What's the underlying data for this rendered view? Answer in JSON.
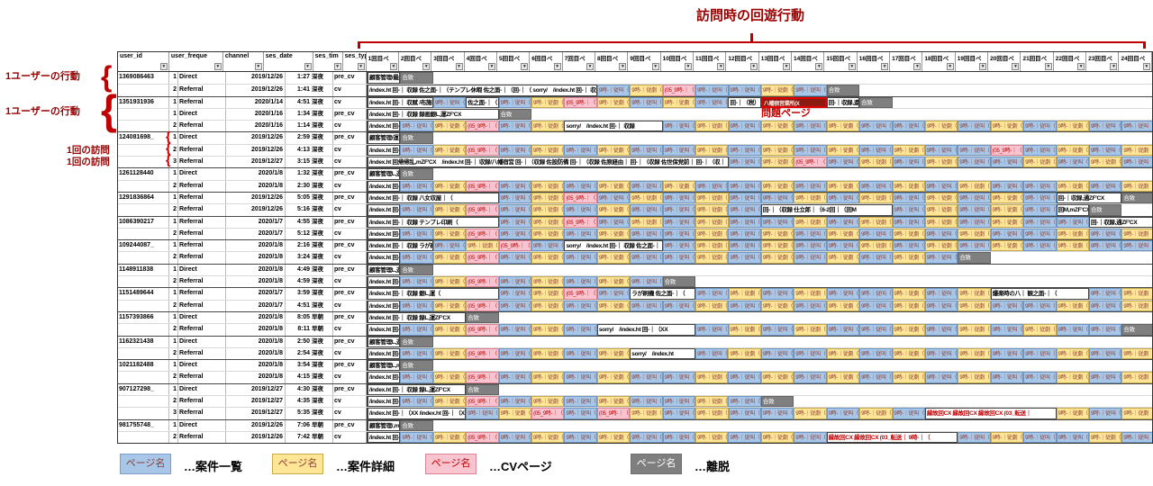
{
  "annotations": {
    "top_title": "訪問時の回遊行動",
    "user_behavior_label_1": "1ユーザーの行動",
    "user_behavior_label_2": "1ユーザーの行動",
    "single_visit_label_1": "1回の訪問",
    "single_visit_label_2": "1回の訪問",
    "problem_page_label": "問題ページ",
    "accent_color": "#990000",
    "brace_color": "#c00000"
  },
  "table": {
    "columns": [
      "user_id",
      "user_freque",
      "channel",
      "ses_date",
      "ses_tim",
      "ses_type"
    ],
    "page_columns": [
      "1回目ペ",
      "2回目ペ",
      "3回目ペ",
      "4回目ペ",
      "5回目ペ",
      "6回目ペ",
      "7回目ペ",
      "8回目ペ",
      "9回目ペ",
      "10回目ペ",
      "11回目ペ",
      "12回目ペ",
      "13回目ペ",
      "14回目ペ",
      "15回目ペ",
      "16回目ペ",
      "17回目ペ",
      "18回目ペ",
      "19回目ペ",
      "20回目ペ",
      "21回目ペ",
      "22回目ペ",
      "23回目ペ",
      "24回目ペ"
    ],
    "cell_text": {
      "B": "9時-｜従叫（",
      "Y": "9時-｜従劇（",
      "P": "(05_9時-｜（",
      "G": "合致"
    },
    "red_cell_text": "八幡宿営業所(X",
    "rows": [
      {
        "user_id": "1369086463",
        "freq": "1",
        "channel": "Direct",
        "date": "2019/12/26",
        "time": "1:27",
        "tag": "深夜",
        "type": "pre_cv",
        "gs": true,
        "segments": [
          {
            "t": "lead",
            "span": 1,
            "text": "顧客管理/最終電話,遠ZF'CX"
          },
          {
            "t": "run",
            "p": "G"
          }
        ]
      },
      {
        "user_id": "",
        "freq": "2",
        "channel": "Referral",
        "date": "2019/12/26",
        "time": "1:41",
        "tag": "深夜",
        "type": "cv",
        "segments": [
          {
            "t": "lead",
            "span": 7,
            "text": "/index.ht 回-｜ 収録 佐之面-｜（テンプレ休暇 佐之面-｜（回-｜（ sorry/　/index.ht 回-｜ 収録 附予約金雇 佐之面-｜（回-｜回M"
          },
          {
            "t": "run",
            "p": "BYPBBYBG"
          }
        ]
      },
      {
        "user_id": "1351931936",
        "freq": "1",
        "channel": "Referral",
        "date": "2020/1/14",
        "time": "4:51",
        "tag": "深夜",
        "type": "cv",
        "gs": true,
        "segments": [
          {
            "t": "lead",
            "span": 2,
            "text": "/index.ht 回-｜ 収賦 /布施収蔵"
          },
          {
            "t": "run",
            "p": "B"
          },
          {
            "t": "lead",
            "span": 1,
            "text": "佐之面-｜（"
          },
          {
            "t": "run",
            "p": "BYPYBYB"
          },
          {
            "t": "lead",
            "span": 1,
            "text": "回-｜（税）"
          },
          {
            "t": "red",
            "span": 2
          },
          {
            "t": "lead",
            "span": 1,
            "text": "回-｜収録,遠"
          },
          {
            "t": "run",
            "p": "G"
          }
        ]
      },
      {
        "user_id": "",
        "freq": "1",
        "channel": "Direct",
        "date": "2020/1/16",
        "time": "1:34",
        "tag": "深夜",
        "type": "pre_cv",
        "segments": [
          {
            "t": "lead",
            "span": 4,
            "text": "/index.ht 回-｜ 収録 録画銀L,運ZF'CX"
          },
          {
            "t": "run",
            "p": "G"
          }
        ]
      },
      {
        "user_id": "",
        "freq": "2",
        "channel": "Referral",
        "date": "2020/1/16",
        "time": "1:14",
        "tag": "深夜",
        "type": "cv",
        "segments": [
          {
            "t": "lead",
            "span": 1,
            "text": "/index.ht 回-｜収（"
          },
          {
            "t": "run",
            "p": "BYPBY"
          },
          {
            "t": "lead",
            "span": 3,
            "text": "sorry/　/index.ht 回-｜ 収録"
          },
          {
            "t": "run",
            "p": "BYBYBYBBYBYBYBB"
          }
        ]
      },
      {
        "user_id": "124081698_",
        "freq": "1",
        "channel": "Direct",
        "date": "2019/12/26",
        "time": "2:59",
        "tag": "深夜",
        "type": "pre_cv",
        "gs": true,
        "segments": [
          {
            "t": "lead",
            "span": 1,
            "text": "顧客管理/運営電話,遠ZF'CX"
          },
          {
            "t": "run",
            "p": "G"
          }
        ]
      },
      {
        "user_id": "",
        "freq": "2",
        "channel": "Referral",
        "date": "2019/12/26",
        "time": "4:13",
        "tag": "深夜",
        "type": "cv",
        "segments": [
          {
            "t": "lead",
            "span": 1,
            "text": "/index.ht 回-｜収（"
          },
          {
            "t": "run",
            "p": "BYPBYBYBBYBYBYBYBBPBYBY"
          }
        ]
      },
      {
        "user_id": "",
        "freq": "3",
        "channel": "Referral",
        "date": "2019/12/27",
        "time": "3:15",
        "tag": "深夜",
        "type": "cv",
        "segments": [
          {
            "t": "lead",
            "span": 11,
            "text": "/index.ht 回帰帰乱,mZF'CX　/index.ht 回-｜ 収録/八幡宿営 回-｜（収録 佐設防備 回-｜（収録 佐原経由｜ 回-｜（収録 佐世保党前｜ 回-｜（収｜"
          },
          {
            "t": "run",
            "p": "BYPBYBYBBYBYB"
          }
        ]
      },
      {
        "user_id": "1261128440",
        "freq": "1",
        "channel": "Direct",
        "date": "2020/1/8",
        "time": "1:32",
        "tag": "深夜",
        "type": "pre_cv",
        "gs": true,
        "segments": [
          {
            "t": "lead",
            "span": 1,
            "text": "顧客管理L,運ZF'CX"
          },
          {
            "t": "run",
            "p": "G"
          }
        ]
      },
      {
        "user_id": "",
        "freq": "2",
        "channel": "Referral",
        "date": "2020/1/8",
        "time": "2:30",
        "tag": "深夜",
        "type": "cv",
        "segments": [
          {
            "t": "lead",
            "span": 1,
            "text": "/index.ht 回-｜収（"
          },
          {
            "t": "run",
            "p": "BYPBYBYBYBBYBYBYBYBBYBY"
          }
        ]
      },
      {
        "user_id": "1291836864",
        "freq": "1",
        "channel": "Referral",
        "date": "2019/12/26",
        "time": "5:05",
        "tag": "深夜",
        "type": "pre_cv",
        "gs": true,
        "segments": [
          {
            "t": "lead",
            "span": 4,
            "text": "/index.ht 回-｜ 収録 八女収屋｜（"
          },
          {
            "t": "run",
            "p": "BYPBYBYBBYBYBYBYB"
          },
          {
            "t": "lead",
            "span": 2,
            "text": "回-｜収録,通ZF'CX"
          },
          {
            "t": "run",
            "p": "G"
          }
        ]
      },
      {
        "user_id": "",
        "freq": "2",
        "channel": "Referral",
        "date": "2019/12/26",
        "time": "5:16",
        "tag": "深夜",
        "type": "cv",
        "segments": [
          {
            "t": "lead",
            "span": 1,
            "text": "/index.ht 回-｜収（"
          },
          {
            "t": "run",
            "p": "BYPBYBYBBYB"
          },
          {
            "t": "lead",
            "span": 4,
            "text": "回-｜（収録 仕立郎｜（6-2回｜（回M"
          },
          {
            "t": "run",
            "p": "BYBYB"
          },
          {
            "t": "lead",
            "span": 1,
            "text": "回M,mZF'CX"
          },
          {
            "t": "run",
            "p": "G"
          }
        ]
      },
      {
        "user_id": "1086390217",
        "freq": "1",
        "channel": "Referral",
        "date": "2020/1/7",
        "time": "4:55",
        "tag": "深夜",
        "type": "pre_cv",
        "gs": true,
        "segments": [
          {
            "t": "lead",
            "span": 4,
            "text": "/index.ht 回-｜ 収録 テンプレ印刷（"
          },
          {
            "t": "run",
            "p": "BYPBYBYBBYBYBYBYBB"
          },
          {
            "t": "lead",
            "span": 2,
            "text": "回-｜収録,通ZF'CX"
          }
        ]
      },
      {
        "user_id": "",
        "freq": "2",
        "channel": "Referral",
        "date": "2020/1/7",
        "time": "5:12",
        "tag": "深夜",
        "type": "cv",
        "segments": [
          {
            "t": "lead",
            "span": 1,
            "text": "/index.ht 回-｜収（"
          },
          {
            "t": "run",
            "p": "BYPBYBYBBYBYBYBYBYBBYBY"
          }
        ]
      },
      {
        "user_id": "109244087_",
        "freq": "1",
        "channel": "Referral",
        "date": "2020/1/8",
        "time": "2:16",
        "tag": "深夜",
        "type": "pre_cv",
        "gs": true,
        "segments": [
          {
            "t": "lead",
            "span": 2,
            "text": "/index.ht 回-｜ 収録 ラが刷機"
          },
          {
            "t": "run",
            "p": "BYPB"
          },
          {
            "t": "lead",
            "span": 3,
            "text": "sorry/　/index.ht 回-｜ 収録 佐之面-｜（"
          },
          {
            "t": "run",
            "p": "BYBYBBYBYBYBYBB"
          }
        ]
      },
      {
        "user_id": "",
        "freq": "2",
        "channel": "Referral",
        "date": "2020/1/8",
        "time": "3:24",
        "tag": "深夜",
        "type": "cv",
        "segments": [
          {
            "t": "lead",
            "span": 1,
            "text": "/index.ht 回-｜収（"
          },
          {
            "t": "run",
            "p": "BYPBYBYBBYBYBYBYBG"
          }
        ]
      },
      {
        "user_id": "1148911838",
        "freq": "1",
        "channel": "Direct",
        "date": "2020/1/8",
        "time": "4:49",
        "tag": "深夜",
        "type": "pre_cv",
        "gs": true,
        "segments": [
          {
            "t": "lead",
            "span": 1,
            "text": "顧客管理L,運ZF'CX"
          },
          {
            "t": "run",
            "p": "G"
          }
        ]
      },
      {
        "user_id": "",
        "freq": "2",
        "channel": "Referral",
        "date": "2020/1/8",
        "time": "4:59",
        "tag": "深夜",
        "type": "cv",
        "segments": [
          {
            "t": "lead",
            "span": 1,
            "text": "/index.ht 回-｜収（"
          },
          {
            "t": "run",
            "p": "BYPBYBYBG"
          }
        ]
      },
      {
        "user_id": "1151489644",
        "freq": "1",
        "channel": "Referral",
        "date": "2020/1/7",
        "time": "3:59",
        "tag": "深夜",
        "type": "pre_cv",
        "gs": true,
        "segments": [
          {
            "t": "lead",
            "span": 4,
            "text": "/index.ht 回-｜ 収録 銀L,運（"
          },
          {
            "t": "run",
            "p": "BYPB"
          },
          {
            "t": "lead",
            "span": 2,
            "text": "ラが刷機 佐之面-｜（"
          },
          {
            "t": "run",
            "p": "BYBYBBYBY"
          },
          {
            "t": "lead",
            "span": 3,
            "text": "爆楽時の八｜ 観之面-｜（"
          },
          {
            "t": "run",
            "p": "BY"
          }
        ]
      },
      {
        "user_id": "",
        "freq": "2",
        "channel": "Referral",
        "date": "2020/1/7",
        "time": "4:51",
        "tag": "深夜",
        "type": "cv",
        "segments": [
          {
            "t": "lead",
            "span": 1,
            "text": "/index.ht 回-｜収（"
          },
          {
            "t": "run",
            "p": "BYPBYBYBBYBYBYBYBYBBYBY"
          }
        ]
      },
      {
        "user_id": "1157393866",
        "freq": "1",
        "channel": "Direct",
        "date": "2020/1/8",
        "time": "8:05",
        "tag": "早朝",
        "type": "pre_cv",
        "gs": true,
        "segments": [
          {
            "t": "lead",
            "span": 3,
            "text": "/index.ht 回-｜ 収録 録L,運ZF'CX"
          },
          {
            "t": "run",
            "p": "G"
          }
        ]
      },
      {
        "user_id": "",
        "freq": "2",
        "channel": "Referral",
        "date": "2020/1/8",
        "time": "8:11",
        "tag": "早朝",
        "type": "cv",
        "segments": [
          {
            "t": "lead",
            "span": 1,
            "text": "/index.ht 回-｜収（"
          },
          {
            "t": "run",
            "p": "BYPBYB"
          },
          {
            "t": "lead",
            "span": 3,
            "text": "sorry/　/index.ht 回-｜（XX"
          },
          {
            "t": "run",
            "p": "BYBYBBYBYBYBBG"
          }
        ]
      },
      {
        "user_id": "1162321438",
        "freq": "1",
        "channel": "Direct",
        "date": "2020/1/8",
        "time": "2:50",
        "tag": "深夜",
        "type": "pre_cv",
        "gs": true,
        "segments": [
          {
            "t": "lead",
            "span": 1,
            "text": "顧客管理L,運ZF'CX"
          },
          {
            "t": "run",
            "p": "G"
          }
        ]
      },
      {
        "user_id": "",
        "freq": "2",
        "channel": "Referral",
        "date": "2020/1/8",
        "time": "2:54",
        "tag": "深夜",
        "type": "cv",
        "segments": [
          {
            "t": "lead",
            "span": 1,
            "text": "/index.ht 回-｜収（"
          },
          {
            "t": "run",
            "p": "BYPBYBY"
          },
          {
            "t": "lead",
            "span": 2,
            "text": "sorry/　/index.ht"
          },
          {
            "t": "run",
            "p": "BYBBYBYBYBBYBY"
          }
        ]
      },
      {
        "user_id": "1021182488",
        "freq": "1",
        "channel": "Direct",
        "date": "2020/1/8",
        "time": "3:54",
        "tag": "深夜",
        "type": "pre_cv",
        "gs": true,
        "segments": [
          {
            "t": "lead",
            "span": 1,
            "text": "顧客管理L,mZF'CX"
          },
          {
            "t": "run",
            "p": "G"
          }
        ]
      },
      {
        "user_id": "",
        "freq": "2",
        "channel": "Referral",
        "date": "2020/1/8",
        "time": "4:15",
        "tag": "深夜",
        "type": "cv",
        "segments": [
          {
            "t": "lead",
            "span": 1,
            "text": "/index.ht 回-｜収（"
          },
          {
            "t": "run",
            "p": "BYPBYBYBBYBYBYBYBYBBYBY"
          }
        ]
      },
      {
        "user_id": "907127298_",
        "freq": "1",
        "channel": "Direct",
        "date": "2019/12/27",
        "time": "4:30",
        "tag": "深夜",
        "type": "pre_cv",
        "gs": true,
        "segments": [
          {
            "t": "lead",
            "span": 3,
            "text": "/index.ht 回-｜ 収録 録L,運ZF'CX"
          },
          {
            "t": "run",
            "p": "G"
          }
        ]
      },
      {
        "user_id": "",
        "freq": "2",
        "channel": "Referral",
        "date": "2019/12/27",
        "time": "4:35",
        "tag": "深夜",
        "type": "cv",
        "segments": [
          {
            "t": "lead",
            "span": 1,
            "text": "/index.ht 回-｜収（"
          },
          {
            "t": "run",
            "p": "BYPBYBYBBYBG"
          }
        ]
      },
      {
        "user_id": "",
        "freq": "3",
        "channel": "Referral",
        "date": "2019/12/27",
        "time": "5:35",
        "tag": "深夜",
        "type": "cv",
        "segments": [
          {
            "t": "lead",
            "span": 3,
            "text": "/index.ht 回-｜（XX /index.ht 回-｜（XX"
          },
          {
            "t": "run",
            "p": "BYPBPYBYBBYBYB"
          },
          {
            "t": "lead",
            "span": 4,
            "hl": true,
            "text": "縁故回CX 縁故回CX 縁故回CX (03_転送｜"
          },
          {
            "t": "run",
            "p": "YBY"
          }
        ]
      },
      {
        "user_id": "981755748_",
        "freq": "1",
        "channel": "Direct",
        "date": "2019/12/26",
        "time": "7:06",
        "tag": "早朝",
        "type": "pre_cv",
        "gs": true,
        "segments": [
          {
            "t": "lead",
            "span": 1,
            "text": "顧客管理/,mZF'CX"
          },
          {
            "t": "run",
            "p": "G"
          }
        ]
      },
      {
        "user_id": "",
        "freq": "2",
        "channel": "Referral",
        "date": "2019/12/26",
        "time": "7:42",
        "tag": "早朝",
        "type": "cv",
        "segments": [
          {
            "t": "lead",
            "span": 1,
            "text": "/index.ht 回-｜収（"
          },
          {
            "t": "run",
            "p": "BYPBYBYBBYBYB"
          },
          {
            "t": "lead",
            "span": 4,
            "hl": true,
            "text": "縁故回CX 縁故回CX (03_転送｜ 9時-｜（"
          },
          {
            "t": "run",
            "p": "BYBBYB"
          }
        ]
      }
    ]
  },
  "legend": {
    "items": [
      {
        "label": "ページ名",
        "desc": "…案件一覧",
        "type": "B"
      },
      {
        "label": "ページ名",
        "desc": "…案件詳細",
        "type": "Y"
      },
      {
        "label": "ページ名",
        "desc": "…CVページ",
        "type": "P"
      },
      {
        "label": "ページ名",
        "desc": "…離脱",
        "type": "G"
      }
    ]
  },
  "colors": {
    "list_blue": "#a8c7e8",
    "detail_yellow": "#ffe596",
    "cv_pink": "#f7c4cf",
    "exit_gray": "#7f7f7f",
    "problem_red": "#e00000",
    "annotation_red": "#990000"
  }
}
